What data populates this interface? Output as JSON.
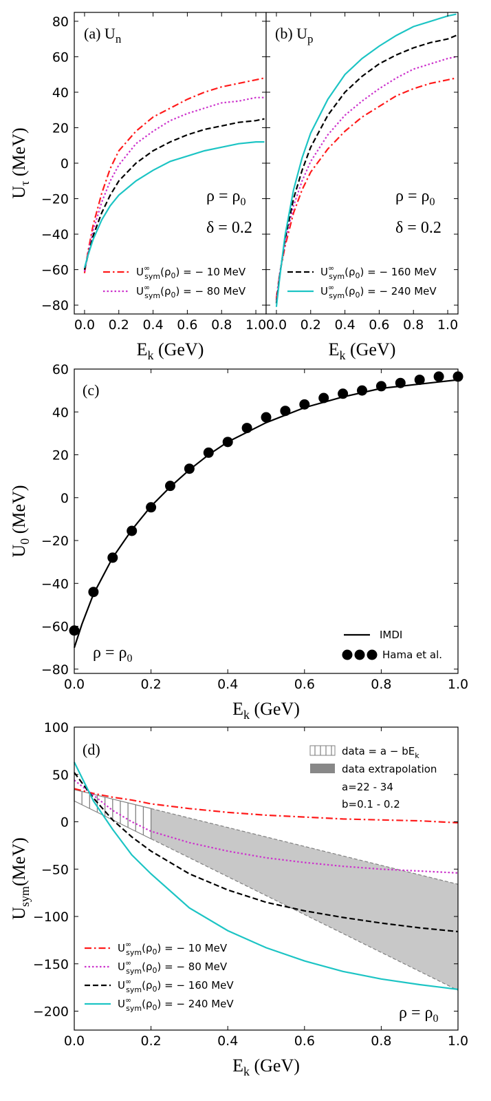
{
  "colors": {
    "red": "#ff1a1a",
    "magenta": "#cc33cc",
    "black": "#000000",
    "cyan": "#1cc4c4",
    "band": "#c8c8c8",
    "hatch": "#808080"
  },
  "chart_data": [
    {
      "id": "a",
      "type": "line",
      "panel_label": "(a)",
      "title_main": "U",
      "title_sub": "n",
      "xlabel_main": "E",
      "xlabel_sub": "k",
      "xlabel_unit": " (GeV)",
      "ylabel_main": "U",
      "ylabel_sub": "τ",
      "ylabel_unit": " (MeV)",
      "xlim": [
        -0.06,
        1.06
      ],
      "ylim": [
        -85,
        85
      ],
      "xticks": [
        0.0,
        0.2,
        0.4,
        0.6,
        0.8,
        1.0
      ],
      "yticks": [
        -80,
        -60,
        -40,
        -20,
        0,
        20,
        40,
        60,
        80
      ],
      "annotations": {
        "rho": "ρ = ρ",
        "rho_sub": "0",
        "delta": "δ = 0.2"
      },
      "legend": [
        {
          "label_pre": "U",
          "label_sup": "∞",
          "label_sub": "sym",
          "label_post": "(ρ",
          "label_post_sub": "0",
          "label_end": ") = − 10 MeV",
          "series": 0
        },
        {
          "label_pre": "U",
          "label_sup": "∞",
          "label_sub": "sym",
          "label_post": "(ρ",
          "label_post_sub": "0",
          "label_end": ") = − 80 MeV",
          "series": 1
        }
      ],
      "series": [
        {
          "name": "U∞sym(ρ0) = −10 MeV",
          "color": "red",
          "dash": "dashdot",
          "x": [
            0,
            0.02,
            0.05,
            0.1,
            0.15,
            0.2,
            0.3,
            0.4,
            0.5,
            0.6,
            0.7,
            0.8,
            0.9,
            1.0,
            1.05
          ],
          "y": [
            -62,
            -50,
            -35,
            -17,
            -3,
            7,
            18,
            26,
            31,
            36,
            40,
            43,
            45,
            47,
            48
          ]
        },
        {
          "name": "U∞sym(ρ0) = −80 MeV",
          "color": "magenta",
          "dash": "dotted",
          "x": [
            0,
            0.02,
            0.05,
            0.1,
            0.15,
            0.2,
            0.3,
            0.4,
            0.5,
            0.6,
            0.7,
            0.8,
            0.9,
            1.0,
            1.05
          ],
          "y": [
            -61,
            -51,
            -38,
            -22,
            -10,
            -1,
            11,
            18,
            24,
            28,
            31,
            34,
            35,
            37,
            37
          ]
        },
        {
          "name": "U∞sym(ρ0) = −160 MeV",
          "color": "black",
          "dash": "dashed",
          "x": [
            0,
            0.02,
            0.05,
            0.1,
            0.15,
            0.2,
            0.3,
            0.4,
            0.5,
            0.6,
            0.7,
            0.8,
            0.9,
            1.0,
            1.05
          ],
          "y": [
            -60,
            -52,
            -41,
            -28,
            -18,
            -10,
            0,
            7,
            12,
            16,
            19,
            21,
            23,
            24,
            25
          ]
        },
        {
          "name": "U∞sym(ρ0) = −240 MeV",
          "color": "cyan",
          "dash": "solid",
          "x": [
            0,
            0.02,
            0.05,
            0.1,
            0.15,
            0.2,
            0.3,
            0.4,
            0.5,
            0.6,
            0.7,
            0.8,
            0.9,
            1.0,
            1.05
          ],
          "y": [
            -59,
            -52,
            -43,
            -32,
            -24,
            -18,
            -10,
            -4,
            1,
            4,
            7,
            9,
            11,
            12,
            12
          ]
        }
      ]
    },
    {
      "id": "b",
      "type": "line",
      "panel_label": "(b)",
      "title_main": "U",
      "title_sub": "p",
      "xlabel_main": "E",
      "xlabel_sub": "k",
      "xlabel_unit": " (GeV)",
      "xlim": [
        -0.06,
        1.06
      ],
      "ylim": [
        -85,
        85
      ],
      "xticks": [
        0.0,
        0.2,
        0.4,
        0.6,
        0.8,
        1.0
      ],
      "annotations": {
        "rho": "ρ = ρ",
        "rho_sub": "0",
        "delta": "δ = 0.2"
      },
      "legend": [
        {
          "label_pre": "U",
          "label_sup": "∞",
          "label_sub": "sym",
          "label_post": "(ρ",
          "label_post_sub": "0",
          "label_end": ") = − 160 MeV",
          "series": 2
        },
        {
          "label_pre": "U",
          "label_sup": "∞",
          "label_sub": "sym",
          "label_post": "(ρ",
          "label_post_sub": "0",
          "label_end": ") = − 240 MeV",
          "series": 3
        }
      ],
      "series": [
        {
          "name": "U∞sym(ρ0) = −10 MeV",
          "color": "red",
          "dash": "dashdot",
          "x": [
            0,
            0.02,
            0.05,
            0.1,
            0.15,
            0.2,
            0.3,
            0.4,
            0.5,
            0.6,
            0.7,
            0.8,
            0.9,
            1.0,
            1.05
          ],
          "y": [
            -76,
            -62,
            -47,
            -28,
            -15,
            -5,
            8,
            18,
            26,
            32,
            38,
            42,
            45,
            47,
            48
          ]
        },
        {
          "name": "U∞sym(ρ0) = −80 MeV",
          "color": "magenta",
          "dash": "dotted",
          "x": [
            0,
            0.02,
            0.05,
            0.1,
            0.15,
            0.2,
            0.3,
            0.4,
            0.5,
            0.6,
            0.7,
            0.8,
            0.9,
            1.0,
            1.05
          ],
          "y": [
            -77,
            -62,
            -45,
            -24,
            -10,
            1,
            16,
            27,
            35,
            42,
            48,
            53,
            56,
            59,
            60
          ]
        },
        {
          "name": "U∞sym(ρ0) = −160 MeV",
          "color": "black",
          "dash": "dashed",
          "x": [
            0,
            0.02,
            0.05,
            0.1,
            0.15,
            0.2,
            0.3,
            0.4,
            0.5,
            0.6,
            0.7,
            0.8,
            0.9,
            1.0,
            1.05
          ],
          "y": [
            -79,
            -63,
            -43,
            -20,
            -4,
            9,
            27,
            40,
            49,
            56,
            61,
            65,
            68,
            70,
            72
          ]
        },
        {
          "name": "U∞sym(ρ0) = −240 MeV",
          "color": "cyan",
          "dash": "solid",
          "x": [
            0,
            0.02,
            0.05,
            0.1,
            0.15,
            0.2,
            0.3,
            0.4,
            0.5,
            0.6,
            0.7,
            0.8,
            0.9,
            1.0,
            1.05
          ],
          "y": [
            -81,
            -64,
            -41,
            -15,
            3,
            17,
            36,
            50,
            59,
            66,
            72,
            77,
            80,
            83,
            84
          ]
        }
      ]
    },
    {
      "id": "c",
      "type": "line",
      "panel_label": "(c)",
      "xlabel_main": "E",
      "xlabel_sub": "k",
      "xlabel_unit": " (GeV)",
      "ylabel_main": "U",
      "ylabel_sub": "0",
      "ylabel_unit": " (MeV)",
      "xlim": [
        0,
        1.0
      ],
      "ylim": [
        -82,
        60
      ],
      "xticks": [
        0.0,
        0.2,
        0.4,
        0.6,
        0.8,
        1.0
      ],
      "yticks": [
        -80,
        -60,
        -40,
        -20,
        0,
        20,
        40,
        60
      ],
      "annotations": {
        "rho": "ρ = ρ",
        "rho_sub": "0"
      },
      "legend": [
        {
          "label": "IMDI",
          "series": "line"
        },
        {
          "label": "Hama et al.",
          "series": "points"
        }
      ],
      "line": {
        "name": "IMDI",
        "color": "black",
        "x": [
          0,
          0.02,
          0.05,
          0.1,
          0.15,
          0.2,
          0.25,
          0.3,
          0.35,
          0.4,
          0.5,
          0.6,
          0.7,
          0.8,
          0.9,
          1.0
        ],
        "y": [
          -70,
          -59,
          -45,
          -28,
          -15,
          -4,
          5,
          13,
          20,
          26,
          35,
          42,
          47,
          51,
          53,
          55
        ]
      },
      "points": {
        "name": "Hama et al.",
        "color": "black",
        "x": [
          0,
          0.05,
          0.1,
          0.15,
          0.2,
          0.25,
          0.3,
          0.35,
          0.4,
          0.45,
          0.5,
          0.55,
          0.6,
          0.65,
          0.7,
          0.75,
          0.8,
          0.85,
          0.9,
          0.95,
          1.0
        ],
        "y": [
          -62,
          -44,
          -28,
          -15.5,
          -4.5,
          5.5,
          13.5,
          21,
          26,
          32.5,
          37.5,
          40.5,
          43.5,
          46.5,
          48.5,
          50,
          52,
          53.5,
          55,
          56.5,
          56.5
        ]
      }
    },
    {
      "id": "d",
      "type": "line",
      "panel_label": "(d)",
      "xlabel_main": "E",
      "xlabel_sub": "k",
      "xlabel_unit": " (GeV)",
      "ylabel_main": "U",
      "ylabel_sub": "sym",
      "ylabel_unit": "(MeV)",
      "xlim": [
        0,
        1.0
      ],
      "ylim": [
        -220,
        100
      ],
      "xticks": [
        0.0,
        0.2,
        0.4,
        0.6,
        0.8,
        1.0
      ],
      "yticks": [
        -200,
        -150,
        -100,
        -50,
        0,
        50,
        100
      ],
      "annotations": {
        "rho": "ρ = ρ",
        "rho_sub": "0",
        "a_range": "a=22 - 34",
        "b_range": "b=0.1 - 0.2"
      },
      "legend_top": [
        {
          "label_pre": "data = a − bE",
          "label_sub": "k",
          "kind": "hatch"
        },
        {
          "label_pre": "data extrapolation",
          "kind": "band"
        }
      ],
      "band": {
        "data_x_range": [
          0,
          0.2
        ],
        "extrap_x_range": [
          0.2,
          1.0
        ],
        "upper": {
          "a": 34,
          "b": 100
        },
        "lower": {
          "a": 22,
          "b": 200
        }
      },
      "legend": [
        {
          "label_pre": "U",
          "label_sup": "∞",
          "label_sub": "sym",
          "label_post": "(ρ",
          "label_post_sub": "0",
          "label_end": ") = − 10 MeV",
          "series": 0
        },
        {
          "label_pre": "U",
          "label_sup": "∞",
          "label_sub": "sym",
          "label_post": "(ρ",
          "label_post_sub": "0",
          "label_end": ") = − 80 MeV",
          "series": 1
        },
        {
          "label_pre": "U",
          "label_sup": "∞",
          "label_sub": "sym",
          "label_post": "(ρ",
          "label_post_sub": "0",
          "label_end": ") = − 160 MeV",
          "series": 2
        },
        {
          "label_pre": "U",
          "label_sup": "∞",
          "label_sub": "sym",
          "label_post": "(ρ",
          "label_post_sub": "0",
          "label_end": ") = − 240 MeV",
          "series": 3
        }
      ],
      "series": [
        {
          "name": "U∞sym(ρ0) = −10 MeV",
          "color": "red",
          "dash": "dashdot",
          "x": [
            0,
            0.05,
            0.1,
            0.15,
            0.2,
            0.3,
            0.4,
            0.5,
            0.6,
            0.7,
            0.8,
            0.9,
            1.0
          ],
          "y": [
            35,
            30,
            26,
            23,
            19,
            14,
            10,
            7,
            5,
            3,
            2,
            1,
            -1
          ]
        },
        {
          "name": "U∞sym(ρ0) = −80 MeV",
          "color": "magenta",
          "dash": "dotted",
          "x": [
            0,
            0.05,
            0.1,
            0.15,
            0.2,
            0.3,
            0.4,
            0.5,
            0.6,
            0.7,
            0.8,
            0.9,
            1.0
          ],
          "y": [
            44,
            28,
            12,
            0,
            -10,
            -22,
            -31,
            -38,
            -43,
            -47,
            -50,
            -52,
            -54
          ]
        },
        {
          "name": "U∞sym(ρ0) = −160 MeV",
          "color": "black",
          "dash": "dashed",
          "x": [
            0,
            0.05,
            0.1,
            0.15,
            0.2,
            0.3,
            0.4,
            0.5,
            0.6,
            0.7,
            0.8,
            0.9,
            1.0
          ],
          "y": [
            52,
            25,
            2,
            -16,
            -31,
            -55,
            -72,
            -85,
            -94,
            -101,
            -107,
            -112,
            -116
          ]
        },
        {
          "name": "U∞sym(ρ0) = −240 MeV",
          "color": "cyan",
          "dash": "solid",
          "x": [
            0,
            0.05,
            0.1,
            0.15,
            0.2,
            0.3,
            0.4,
            0.5,
            0.6,
            0.7,
            0.8,
            0.9,
            1.0
          ],
          "y": [
            63,
            22,
            -8,
            -35,
            -55,
            -91,
            -115,
            -133,
            -147,
            -158,
            -166,
            -172,
            -177
          ]
        }
      ]
    }
  ]
}
